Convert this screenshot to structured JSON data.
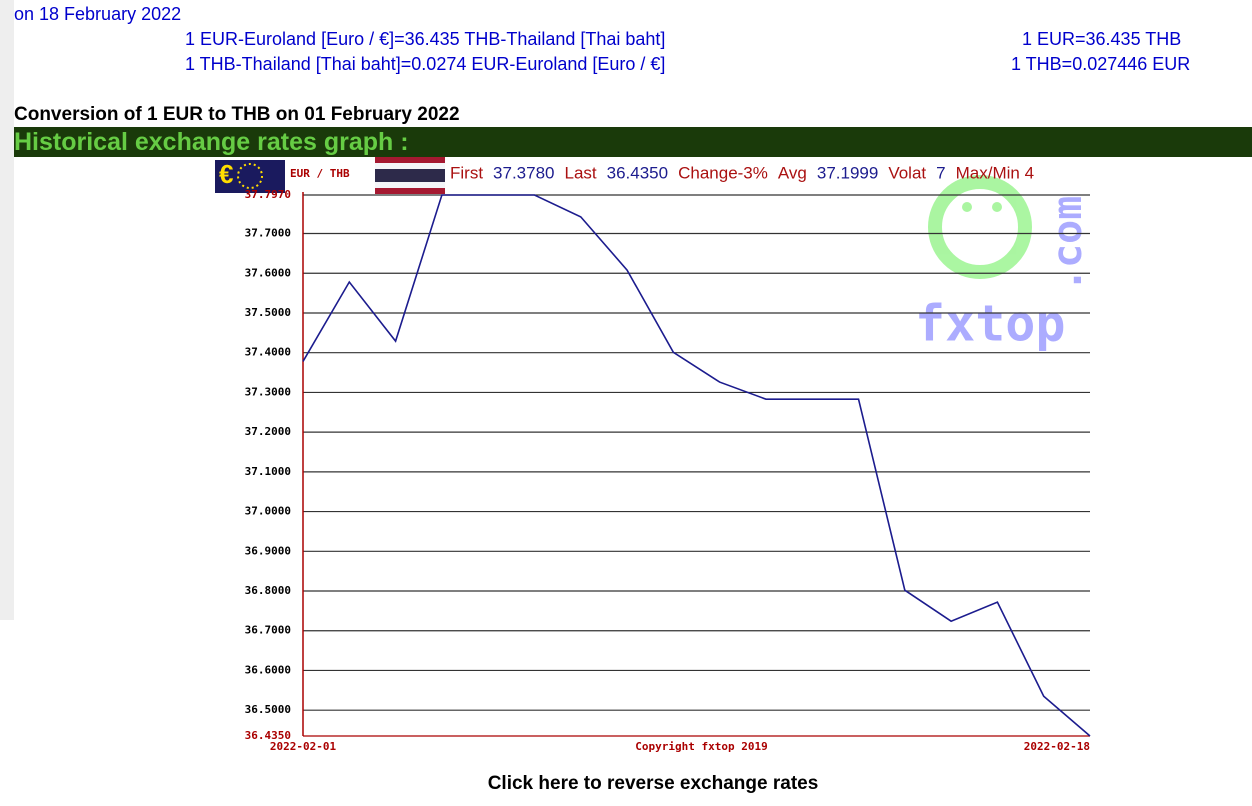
{
  "header": {
    "date_line": "on 18 February 2022",
    "rates": [
      {
        "full": "1 EUR-Euroland [Euro / €]=36.435 THB-Thailand [Thai baht]",
        "short": "1 EUR=36.435 THB"
      },
      {
        "full": "1 THB-Thailand [Thai baht]=0.0274 EUR-Euroland [Euro / €]",
        "short": "1 THB=0.027446 EUR"
      }
    ]
  },
  "conversion_title": "Conversion of 1 EUR to THB on 01 February 2022",
  "section_title": "Historical exchange rates graph :",
  "chart_data": {
    "type": "line",
    "pair_label": "EUR / THB",
    "stats": [
      {
        "label": "First",
        "value": "37.3780"
      },
      {
        "label": "Last",
        "value": "36.4350"
      },
      {
        "label": "Change-3%",
        "value": null
      },
      {
        "label": "Avg",
        "value": "37.1999"
      },
      {
        "label": "Volat",
        "value": "7"
      },
      {
        "label": "Max/Min 4",
        "value": null
      }
    ],
    "categories": [
      "2022-02-01",
      null,
      null,
      null,
      null,
      null,
      null,
      null,
      null,
      null,
      null,
      null,
      null,
      null,
      null,
      null,
      null,
      "2022-02-18"
    ],
    "series": [
      {
        "name": "EUR / THB",
        "color": "#1c1c8e",
        "values": [
          37.378,
          37.578,
          37.429,
          37.797,
          37.797,
          37.797,
          37.742,
          37.608,
          37.401,
          37.326,
          37.283,
          37.283,
          37.283,
          36.802,
          36.724,
          36.772,
          36.535,
          36.435
        ]
      }
    ],
    "ylim": [
      36.435,
      37.797
    ],
    "yticks": [
      {
        "value": 36.435,
        "label": "36.4350"
      },
      {
        "value": 36.5,
        "label": "36.5000"
      },
      {
        "value": 36.6,
        "label": "36.6000"
      },
      {
        "value": 36.7,
        "label": "36.7000"
      },
      {
        "value": 36.8,
        "label": "36.8000"
      },
      {
        "value": 36.9,
        "label": "36.9000"
      },
      {
        "value": 37.0,
        "label": "37.0000"
      },
      {
        "value": 37.1,
        "label": "37.1000"
      },
      {
        "value": 37.2,
        "label": "37.2000"
      },
      {
        "value": 37.3,
        "label": "37.3000"
      },
      {
        "value": 37.4,
        "label": "37.4000"
      },
      {
        "value": 37.5,
        "label": "37.5000"
      },
      {
        "value": 37.6,
        "label": "37.6000"
      },
      {
        "value": 37.7,
        "label": "37.7000"
      },
      {
        "value": 37.797,
        "label": "37.7970"
      }
    ],
    "grid": true,
    "copyright": "Copyright fxtop 2019",
    "watermark": [
      "fxtop",
      ".com"
    ]
  },
  "reverse_link": "Click here to reverse exchange rates"
}
